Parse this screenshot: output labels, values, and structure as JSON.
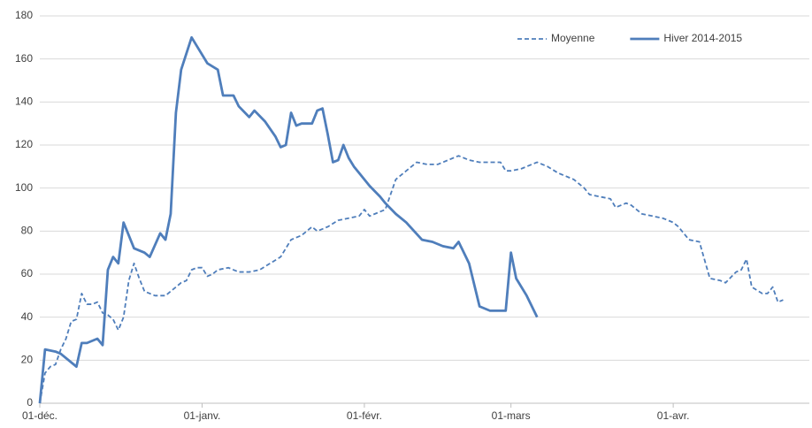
{
  "chart_data": {
    "type": "line",
    "xlim": [
      0,
      147
    ],
    "xticks": [
      {
        "value": 0,
        "label": "01-déc."
      },
      {
        "value": 31,
        "label": "01-janv."
      },
      {
        "value": 62,
        "label": "01-févr."
      },
      {
        "value": 90,
        "label": "01-mars"
      },
      {
        "value": 121,
        "label": "01-avr."
      }
    ],
    "ylim": [
      0,
      180
    ],
    "yticks": [
      0,
      20,
      40,
      60,
      80,
      100,
      120,
      140,
      160,
      180
    ],
    "grid": true,
    "legend": "upper right",
    "series": [
      {
        "name": "Moyenne",
        "color": "#4f7ebb",
        "dash": true,
        "x": [
          0,
          1,
          2,
          3,
          4,
          5,
          6,
          7,
          8,
          9,
          10,
          11,
          12,
          13,
          14,
          15,
          16,
          17,
          18,
          19,
          20,
          22,
          24,
          25,
          27,
          28,
          29,
          30,
          31,
          32,
          33,
          34,
          36,
          38,
          40,
          42,
          44,
          46,
          48,
          50,
          52,
          53,
          55,
          57,
          59,
          61,
          62,
          63,
          64,
          66,
          67,
          68,
          70,
          72,
          74,
          76,
          78,
          80,
          82,
          84,
          86,
          88,
          89,
          90,
          92,
          94,
          95,
          97,
          99,
          101,
          102,
          104,
          105,
          107,
          109,
          110,
          112,
          113,
          115,
          117,
          119,
          121,
          122,
          124,
          126,
          128,
          130,
          131,
          133,
          134,
          135,
          136,
          138,
          139,
          140,
          141,
          142
        ],
        "values": [
          0,
          14,
          17,
          18,
          25,
          30,
          38,
          39,
          51,
          46,
          46,
          47,
          42,
          41,
          39,
          34,
          40,
          57,
          65,
          58,
          52,
          50,
          50,
          52,
          56,
          57,
          62,
          63,
          63,
          59,
          60,
          62,
          63,
          61,
          61,
          62,
          65,
          68,
          76,
          78,
          82,
          80,
          82,
          85,
          86,
          87,
          90,
          87,
          88,
          90,
          97,
          104,
          108,
          112,
          111,
          111,
          113,
          115,
          113,
          112,
          112,
          112,
          108,
          108,
          109,
          111,
          112,
          110,
          107,
          105,
          104,
          100,
          97,
          96,
          95,
          91,
          93,
          92,
          88,
          87,
          86,
          84,
          82,
          76,
          75,
          58,
          57,
          56,
          61,
          62,
          67,
          54,
          51,
          51,
          54,
          47,
          48
        ]
      },
      {
        "name": "Hiver 2014-2015",
        "color": "#4f7ebb",
        "dash": false,
        "x": [
          0,
          1,
          3,
          4,
          7,
          8,
          9,
          11,
          12,
          13,
          14,
          15,
          16,
          18,
          20,
          21,
          23,
          24,
          25,
          26,
          27,
          29,
          30,
          32,
          34,
          35,
          37,
          38,
          40,
          41,
          43,
          45,
          46,
          47,
          48,
          49,
          50,
          52,
          53,
          54,
          55,
          56,
          57,
          58,
          59,
          60,
          61,
          63,
          65,
          66,
          68,
          70,
          73,
          75,
          77,
          79,
          80,
          81,
          82,
          84,
          86,
          87,
          89,
          90,
          91,
          93,
          95
        ],
        "values": [
          0,
          25,
          24,
          23,
          17,
          28,
          28,
          30,
          27,
          62,
          68,
          65,
          84,
          72,
          70,
          68,
          79,
          76,
          88,
          135,
          155,
          170,
          166,
          158,
          155,
          143,
          143,
          138,
          133,
          136,
          131,
          124,
          119,
          120,
          135,
          129,
          130,
          130,
          136,
          137,
          125,
          112,
          113,
          120,
          114,
          110,
          107,
          101,
          96,
          93,
          88,
          84,
          76,
          75,
          73,
          72,
          75,
          70,
          65,
          45,
          43,
          43,
          43,
          70,
          58,
          50,
          40
        ]
      }
    ]
  }
}
